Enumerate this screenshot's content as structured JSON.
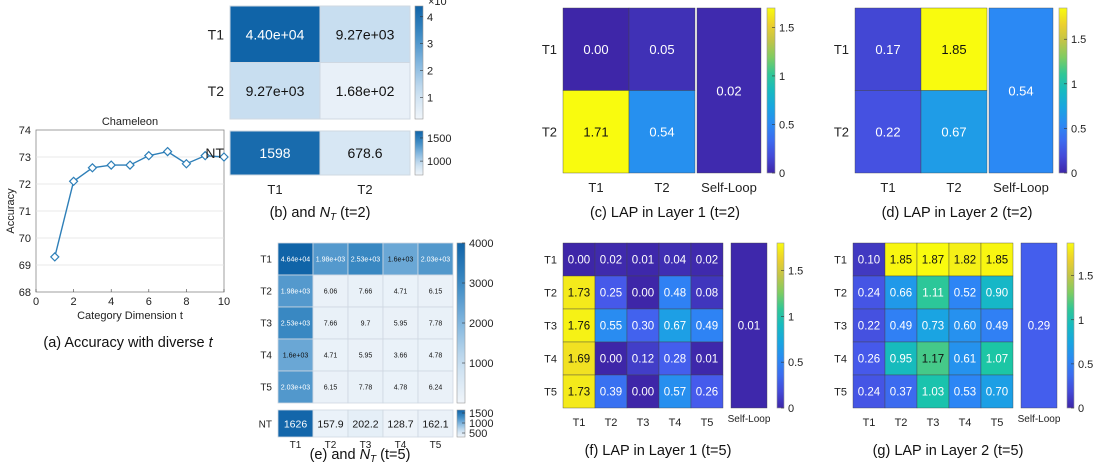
{
  "chart_data": [
    {
      "id": "a",
      "type": "line",
      "title": "Chameleon",
      "xlabel": "Category Dimension t",
      "ylabel": "Accuracy",
      "xlim": [
        0,
        10
      ],
      "ylim": [
        68,
        74
      ],
      "xticks": [
        "0",
        "2",
        "4",
        "6",
        "8",
        "10"
      ],
      "yticks": [
        "68",
        "69",
        "70",
        "71",
        "72",
        "73",
        "74"
      ],
      "x": [
        1,
        2,
        3,
        4,
        5,
        6,
        7,
        8,
        9,
        10
      ],
      "y": [
        69.3,
        72.1,
        72.6,
        72.7,
        72.7,
        73.05,
        73.2,
        72.75,
        73.05,
        73.0
      ],
      "grid": "y",
      "color": "#2e7fb8",
      "caption": "(a) Accuracy with diverse t"
    },
    {
      "id": "b",
      "type": "heatmap",
      "rows": [
        "T1",
        "T2"
      ],
      "cols": [
        "T1",
        "T2"
      ],
      "values": [
        [
          44000,
          9270
        ],
        [
          9270,
          168
        ]
      ],
      "labels": [
        [
          "4.40e+04",
          "9.27e+03"
        ],
        [
          "9.27e+03",
          "1.68e+02"
        ]
      ],
      "colorbar_ticks": [
        "1",
        "2",
        "3",
        "4"
      ],
      "colorbar_exponent": "×10",
      "nt_label": "NT",
      "nt_values": [
        1598,
        678.6
      ],
      "nt_labels": [
        "1598",
        "678.6"
      ],
      "nt_colorbar_ticks": [
        "1000",
        "1500"
      ],
      "caption": "(b) M and N_T (t=2)"
    },
    {
      "id": "c",
      "type": "heatmap",
      "rows": [
        "T1",
        "T2"
      ],
      "cols": [
        "T1",
        "T2",
        "Self-Loop"
      ],
      "values": [
        [
          0.0,
          0.05
        ],
        [
          1.71,
          0.54
        ]
      ],
      "labels": [
        [
          "0.00",
          "0.05"
        ],
        [
          "1.71",
          "0.54"
        ]
      ],
      "self_loop": "0.02",
      "colorbar_ticks": [
        "0",
        "0.5",
        "1",
        "1.5"
      ],
      "colorbar_range": [
        0,
        1.7
      ],
      "caption": "(c) LAP in Layer 1 (t=2)"
    },
    {
      "id": "d",
      "type": "heatmap",
      "rows": [
        "T1",
        "T2"
      ],
      "cols": [
        "T1",
        "T2",
        "Self-Loop"
      ],
      "values": [
        [
          0.17,
          1.85
        ],
        [
          0.22,
          0.67
        ]
      ],
      "labels": [
        [
          "0.17",
          "1.85"
        ],
        [
          "0.22",
          "0.67"
        ]
      ],
      "self_loop": "0.54",
      "colorbar_ticks": [
        "0",
        "0.5",
        "1",
        "1.5"
      ],
      "colorbar_range": [
        0,
        1.85
      ],
      "caption": "(d) LAP in Layer 2 (t=2)"
    },
    {
      "id": "e",
      "type": "heatmap",
      "rows": [
        "T1",
        "T2",
        "T3",
        "T4",
        "T5"
      ],
      "cols": [
        "T1",
        "T2",
        "T3",
        "T4",
        "T5"
      ],
      "values": [
        [
          46400,
          1980,
          2530,
          1600,
          2030
        ],
        [
          1980,
          6.06,
          7.66,
          4.71,
          6.15
        ],
        [
          2530,
          7.66,
          9.7,
          5.95,
          7.78
        ],
        [
          1600,
          4.71,
          5.95,
          3.66,
          4.78
        ],
        [
          2030,
          6.15,
          7.78,
          4.78,
          6.24
        ]
      ],
      "labels": [
        [
          "4.64e+04",
          "1.98e+03",
          "2.53e+03",
          "1.6e+03",
          "2.03e+03"
        ],
        [
          "1.98e+03",
          "6.06",
          "7.66",
          "4.71",
          "6.15"
        ],
        [
          "2.53e+03",
          "7.66",
          "9.7",
          "5.95",
          "7.78"
        ],
        [
          "1.6e+03",
          "4.71",
          "5.95",
          "3.66",
          "4.78"
        ],
        [
          "2.03e+03",
          "6.15",
          "7.78",
          "4.78",
          "6.24"
        ]
      ],
      "colorbar_ticks": [
        "1000",
        "2000",
        "3000",
        "4000"
      ],
      "nt_label": "NT",
      "nt_values": [
        1626,
        157.9,
        202.2,
        128.7,
        162.1
      ],
      "nt_labels": [
        "1626",
        "157.9",
        "202.2",
        "128.7",
        "162.1"
      ],
      "nt_colorbar_ticks": [
        "500",
        "1000",
        "1500"
      ],
      "caption": "(e) M and N_T (t=5)"
    },
    {
      "id": "f",
      "type": "heatmap",
      "rows": [
        "T1",
        "T2",
        "T3",
        "T4",
        "T5"
      ],
      "cols": [
        "T1",
        "T2",
        "T3",
        "T4",
        "T5",
        "Self-Loop"
      ],
      "values": [
        [
          0.0,
          0.02,
          0.01,
          0.04,
          0.02
        ],
        [
          1.73,
          0.25,
          0.0,
          0.48,
          0.08
        ],
        [
          1.76,
          0.55,
          0.3,
          0.67,
          0.49
        ],
        [
          1.69,
          0.0,
          0.12,
          0.28,
          0.01
        ],
        [
          1.73,
          0.39,
          0.0,
          0.57,
          0.26
        ]
      ],
      "labels": [
        [
          "0.00",
          "0.02",
          "0.01",
          "0.04",
          "0.02"
        ],
        [
          "1.73",
          "0.25",
          "0.00",
          "0.48",
          "0.08"
        ],
        [
          "1.76",
          "0.55",
          "0.30",
          "0.67",
          "0.49"
        ],
        [
          "1.69",
          "0.00",
          "0.12",
          "0.28",
          "0.01"
        ],
        [
          "1.73",
          "0.39",
          "0.00",
          "0.57",
          "0.26"
        ]
      ],
      "self_loop": "0.01",
      "colorbar_ticks": [
        "0",
        "0.5",
        "1",
        "1.5"
      ],
      "colorbar_range": [
        0,
        1.8
      ],
      "caption": "(f) LAP in Layer 1 (t=5)"
    },
    {
      "id": "g",
      "type": "heatmap",
      "rows": [
        "T1",
        "T2",
        "T3",
        "T4",
        "T5"
      ],
      "cols": [
        "T1",
        "T2",
        "T3",
        "T4",
        "T5",
        "Self-Loop"
      ],
      "values": [
        [
          0.1,
          1.85,
          1.87,
          1.82,
          1.85
        ],
        [
          0.24,
          0.66,
          1.11,
          0.52,
          0.9
        ],
        [
          0.22,
          0.49,
          0.73,
          0.6,
          0.49
        ],
        [
          0.26,
          0.95,
          1.17,
          0.61,
          1.07
        ],
        [
          0.24,
          0.37,
          1.03,
          0.53,
          0.7
        ]
      ],
      "labels": [
        [
          "0.10",
          "1.85",
          "1.87",
          "1.82",
          "1.85"
        ],
        [
          "0.24",
          "0.66",
          "1.11",
          "0.52",
          "0.90"
        ],
        [
          "0.22",
          "0.49",
          "0.73",
          "0.60",
          "0.49"
        ],
        [
          "0.26",
          "0.95",
          "1.17",
          "0.61",
          "1.07"
        ],
        [
          "0.24",
          "0.37",
          "1.03",
          "0.53",
          "0.70"
        ]
      ],
      "self_loop": "0.29",
      "colorbar_ticks": [
        "0",
        "0.5",
        "1",
        "1.5"
      ],
      "colorbar_range": [
        0,
        1.87
      ],
      "caption": "(g) LAP in Layer 2 (t=5)"
    }
  ]
}
